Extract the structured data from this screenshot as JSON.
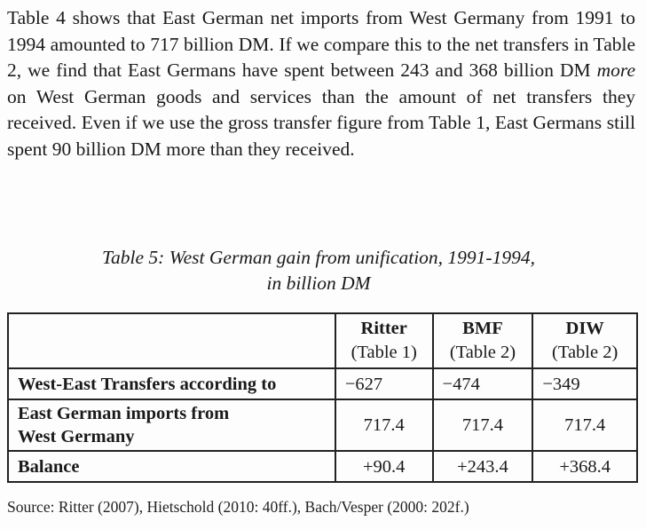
{
  "paragraph": {
    "part1": "Table 4 shows that East German net imports from West Germany from 1991 to 1994 amounted to 717 billion DM. If we compare this to the net transfers in Table 2, we find that East Germans have spent between 243 and 368 billion DM ",
    "emphasis": "more",
    "part2": " on West German goods and services than the amount of net transfers they received. Even if we use the gross transfer figure from Table 1, East Germans still spent 90 billion DM more than they received."
  },
  "caption": {
    "line1": "Table 5: West German gain from unification, 1991-1994,",
    "line2": "in billion DM"
  },
  "table": {
    "headers": [
      {
        "name": "Ritter",
        "sub": "(Table 1)"
      },
      {
        "name": "BMF",
        "sub": "(Table 2)"
      },
      {
        "name": "DIW",
        "sub": "(Table 2)"
      }
    ],
    "rows": [
      {
        "label": "West-East Transfers according to",
        "values": [
          "−627",
          "−474",
          "−349"
        ]
      },
      {
        "label_line1": "East German imports from",
        "label_line2": "West Germany",
        "values": [
          "717.4",
          "717.4",
          "717.4"
        ]
      },
      {
        "label": "Balance",
        "values": [
          "+90.4",
          "+243.4",
          "+368.4"
        ]
      }
    ]
  },
  "source": "Source: Ritter (2007), Hietschold (2010: 40ff.), Bach/Vesper (2000: 202f.)"
}
